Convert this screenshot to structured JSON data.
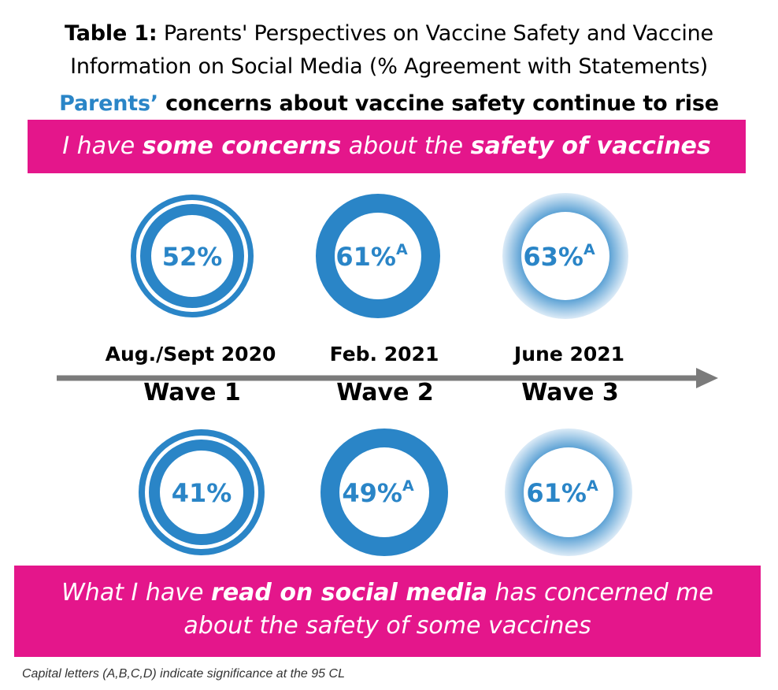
{
  "header": {
    "title_lead": "Table 1:",
    "title_rest_line1": " Parents' Perspectives on Vaccine Safety and Vaccine",
    "title_line2": "Information on Social Media (% Agreement with Statements)",
    "subtitle_highlight": "Parents’",
    "subtitle_rest": " concerns about vaccine safety continue to rise"
  },
  "banner_top": {
    "part1": "I have ",
    "part2": "some concerns",
    "part3": " about the ",
    "part4": "safety of vaccines"
  },
  "banner_bottom": {
    "part1": "What I have ",
    "part2": "read on social media",
    "part3": " has concerned me",
    "line2": "about the safety of some vaccines"
  },
  "waves": [
    {
      "date": "Aug./Sept 2020",
      "wave": "Wave 1"
    },
    {
      "date": "Feb. 2021",
      "wave": "Wave 2"
    },
    {
      "date": "June 2021",
      "wave": "Wave 3"
    }
  ],
  "chart_data": {
    "type": "table",
    "categories": [
      "Wave 1",
      "Wave 2",
      "Wave 3"
    ],
    "series": [
      {
        "values": [
          52,
          61,
          63
        ],
        "labels": [
          "52%",
          "61%",
          "63%"
        ],
        "significance": [
          "",
          "A",
          "A"
        ]
      },
      {
        "values": [
          41,
          49,
          61
        ],
        "labels": [
          "41%",
          "49%",
          "61%"
        ],
        "significance": [
          "",
          "A",
          "A"
        ]
      }
    ]
  },
  "colors": {
    "accent_blue": "#2a85c7",
    "banner_pink": "#e4168b",
    "arrow_gray": "#7b7b7b"
  },
  "footnote": "Capital letters (A,B,C,D) indicate significance at the 95 CL"
}
